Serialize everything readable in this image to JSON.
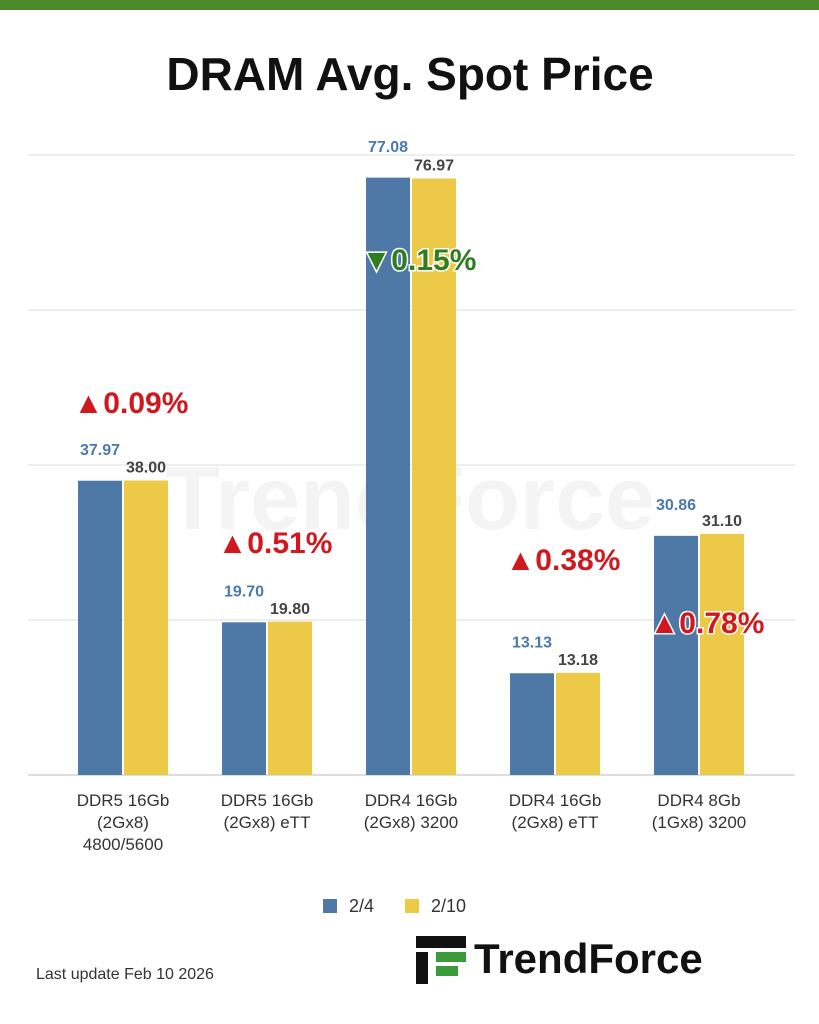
{
  "chart_data": {
    "type": "bar",
    "title": "DRAM Avg. Spot Price",
    "categories": [
      "DDR5 16Gb\n(2Gx8)\n4800/5600",
      "DDR5 16Gb\n(2Gx8) eTT",
      "DDR4 16Gb\n(2Gx8) 3200",
      "DDR4 16Gb\n(2Gx8) eTT",
      "DDR4 8Gb\n(1Gx8) 3200"
    ],
    "series": [
      {
        "name": "2/4",
        "color": "#4e79a7",
        "values": [
          37.97,
          19.7,
          77.08,
          13.13,
          30.86
        ],
        "value_labels": [
          "37.97",
          "19.70",
          "77.08",
          "13.13",
          "30.86"
        ]
      },
      {
        "name": "2/10",
        "color": "#edc948",
        "values": [
          38.0,
          19.8,
          76.97,
          13.18,
          31.1
        ],
        "value_labels": [
          "38.00",
          "19.80",
          "76.97",
          "13.18",
          "31.10"
        ]
      }
    ],
    "changes": [
      "▲0.09%",
      "▲0.51%",
      "▼0.15%",
      "▲0.38%",
      "▲0.78%"
    ],
    "ylim": [
      0,
      80
    ],
    "yticks": [
      0,
      20,
      40,
      60,
      80
    ],
    "grid": true,
    "legend": "bottom",
    "footnote": "Last update  Feb 10  2026",
    "brand": "TrendForce"
  }
}
